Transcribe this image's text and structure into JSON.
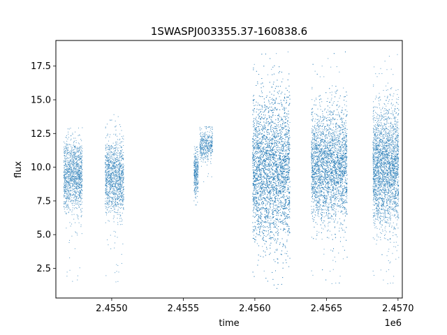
{
  "chart_data": {
    "type": "scatter",
    "title": "1SWASPJ003355.37-160838.6",
    "xlabel": "time",
    "ylabel": "flux",
    "x_offset_label": "1e6",
    "xlim": [
      2454610,
      2457030
    ],
    "ylim": [
      0.3,
      19.4
    ],
    "x_ticks": [
      2455000,
      2455500,
      2456000,
      2456500,
      2457000
    ],
    "x_tick_labels": [
      "2.4550",
      "2.4555",
      "2.4560",
      "2.4565",
      "2.4570"
    ],
    "y_ticks": [
      2.5,
      5.0,
      7.5,
      10.0,
      12.5,
      15.0,
      17.5
    ],
    "y_tick_labels": [
      "2.5",
      "5.0",
      "7.5",
      "10.0",
      "12.5",
      "15.0",
      "17.5"
    ],
    "grid": false,
    "marker_color": "#1f77b4",
    "series": [
      {
        "seasons": [
          {
            "x_start": 2454665,
            "x_end": 2454795,
            "y_center": 9.3,
            "y_spread": 1.3,
            "y_min": 1.5,
            "y_max": 13.2
          },
          {
            "x_start": 2454955,
            "x_end": 2455085,
            "y_center": 9.2,
            "y_spread": 1.3,
            "y_min": 1.3,
            "y_max": 14.3
          },
          {
            "x_start": 2455575,
            "x_end": 2455605,
            "y_center": 9.6,
            "y_spread": 0.8,
            "y_min": 7.2,
            "y_max": 11.6
          },
          {
            "x_start": 2455615,
            "x_end": 2455705,
            "y_center": 11.7,
            "y_spread": 0.6,
            "y_min": 8.6,
            "y_max": 13.0
          },
          {
            "x_start": 2455985,
            "x_end": 2456245,
            "y_center": 9.8,
            "y_spread": 2.6,
            "y_min": 1.0,
            "y_max": 18.6
          },
          {
            "x_start": 2456395,
            "x_end": 2456645,
            "y_center": 10.1,
            "y_spread": 2.0,
            "y_min": 1.1,
            "y_max": 18.6
          },
          {
            "x_start": 2456825,
            "x_end": 2457005,
            "y_center": 10.0,
            "y_spread": 2.1,
            "y_min": 1.1,
            "y_max": 18.4
          }
        ]
      }
    ]
  }
}
